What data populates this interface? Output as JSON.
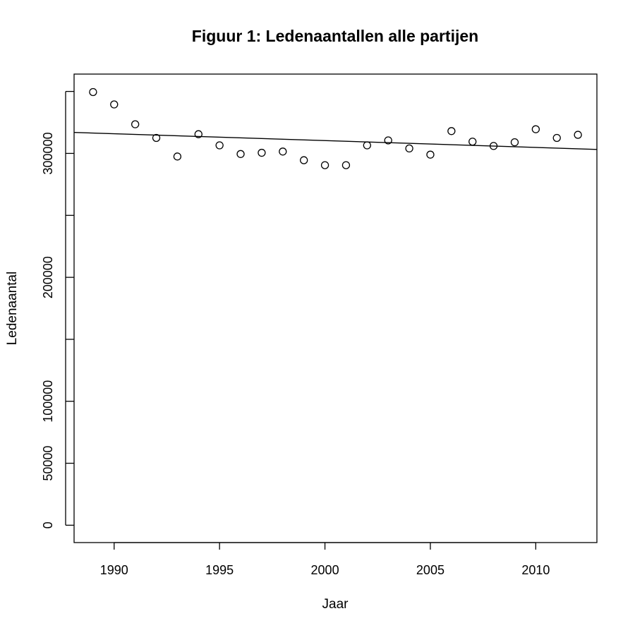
{
  "chart_data": {
    "type": "scatter",
    "title": "Figuur 1: Ledenaantallen alle partijen",
    "xlabel": "Jaar",
    "ylabel": "Ledenaantal",
    "x_ticks": [
      1990,
      1995,
      2000,
      2005,
      2010
    ],
    "y_ticks": [
      0,
      50000,
      100000,
      150000,
      200000,
      250000,
      300000,
      350000
    ],
    "y_tick_labels": [
      "0",
      "50000",
      "100000",
      "",
      "200000",
      "",
      "300000",
      ""
    ],
    "xlim": [
      1988.1,
      2012.9
    ],
    "ylim": [
      -14000,
      364000
    ],
    "grid": false,
    "points": [
      {
        "x": 1989,
        "y": 349500
      },
      {
        "x": 1990,
        "y": 339500
      },
      {
        "x": 1991,
        "y": 323500
      },
      {
        "x": 1992,
        "y": 312500
      },
      {
        "x": 1993,
        "y": 297500
      },
      {
        "x": 1994,
        "y": 315500
      },
      {
        "x": 1995,
        "y": 306500
      },
      {
        "x": 1996,
        "y": 299500
      },
      {
        "x": 1997,
        "y": 300500
      },
      {
        "x": 1998,
        "y": 301500
      },
      {
        "x": 1999,
        "y": 294500
      },
      {
        "x": 2000,
        "y": 290500
      },
      {
        "x": 2001,
        "y": 290500
      },
      {
        "x": 2002,
        "y": 306500
      },
      {
        "x": 2003,
        "y": 310500
      },
      {
        "x": 2004,
        "y": 304000
      },
      {
        "x": 2005,
        "y": 299000
      },
      {
        "x": 2006,
        "y": 318000
      },
      {
        "x": 2007,
        "y": 309500
      },
      {
        "x": 2008,
        "y": 306000
      },
      {
        "x": 2009,
        "y": 309000
      },
      {
        "x": 2010,
        "y": 319500
      },
      {
        "x": 2011,
        "y": 312500
      },
      {
        "x": 2012,
        "y": 315000
      }
    ],
    "trend_line": {
      "x": [
        1988.1,
        2012.9
      ],
      "y": [
        316900,
        303200
      ]
    }
  }
}
